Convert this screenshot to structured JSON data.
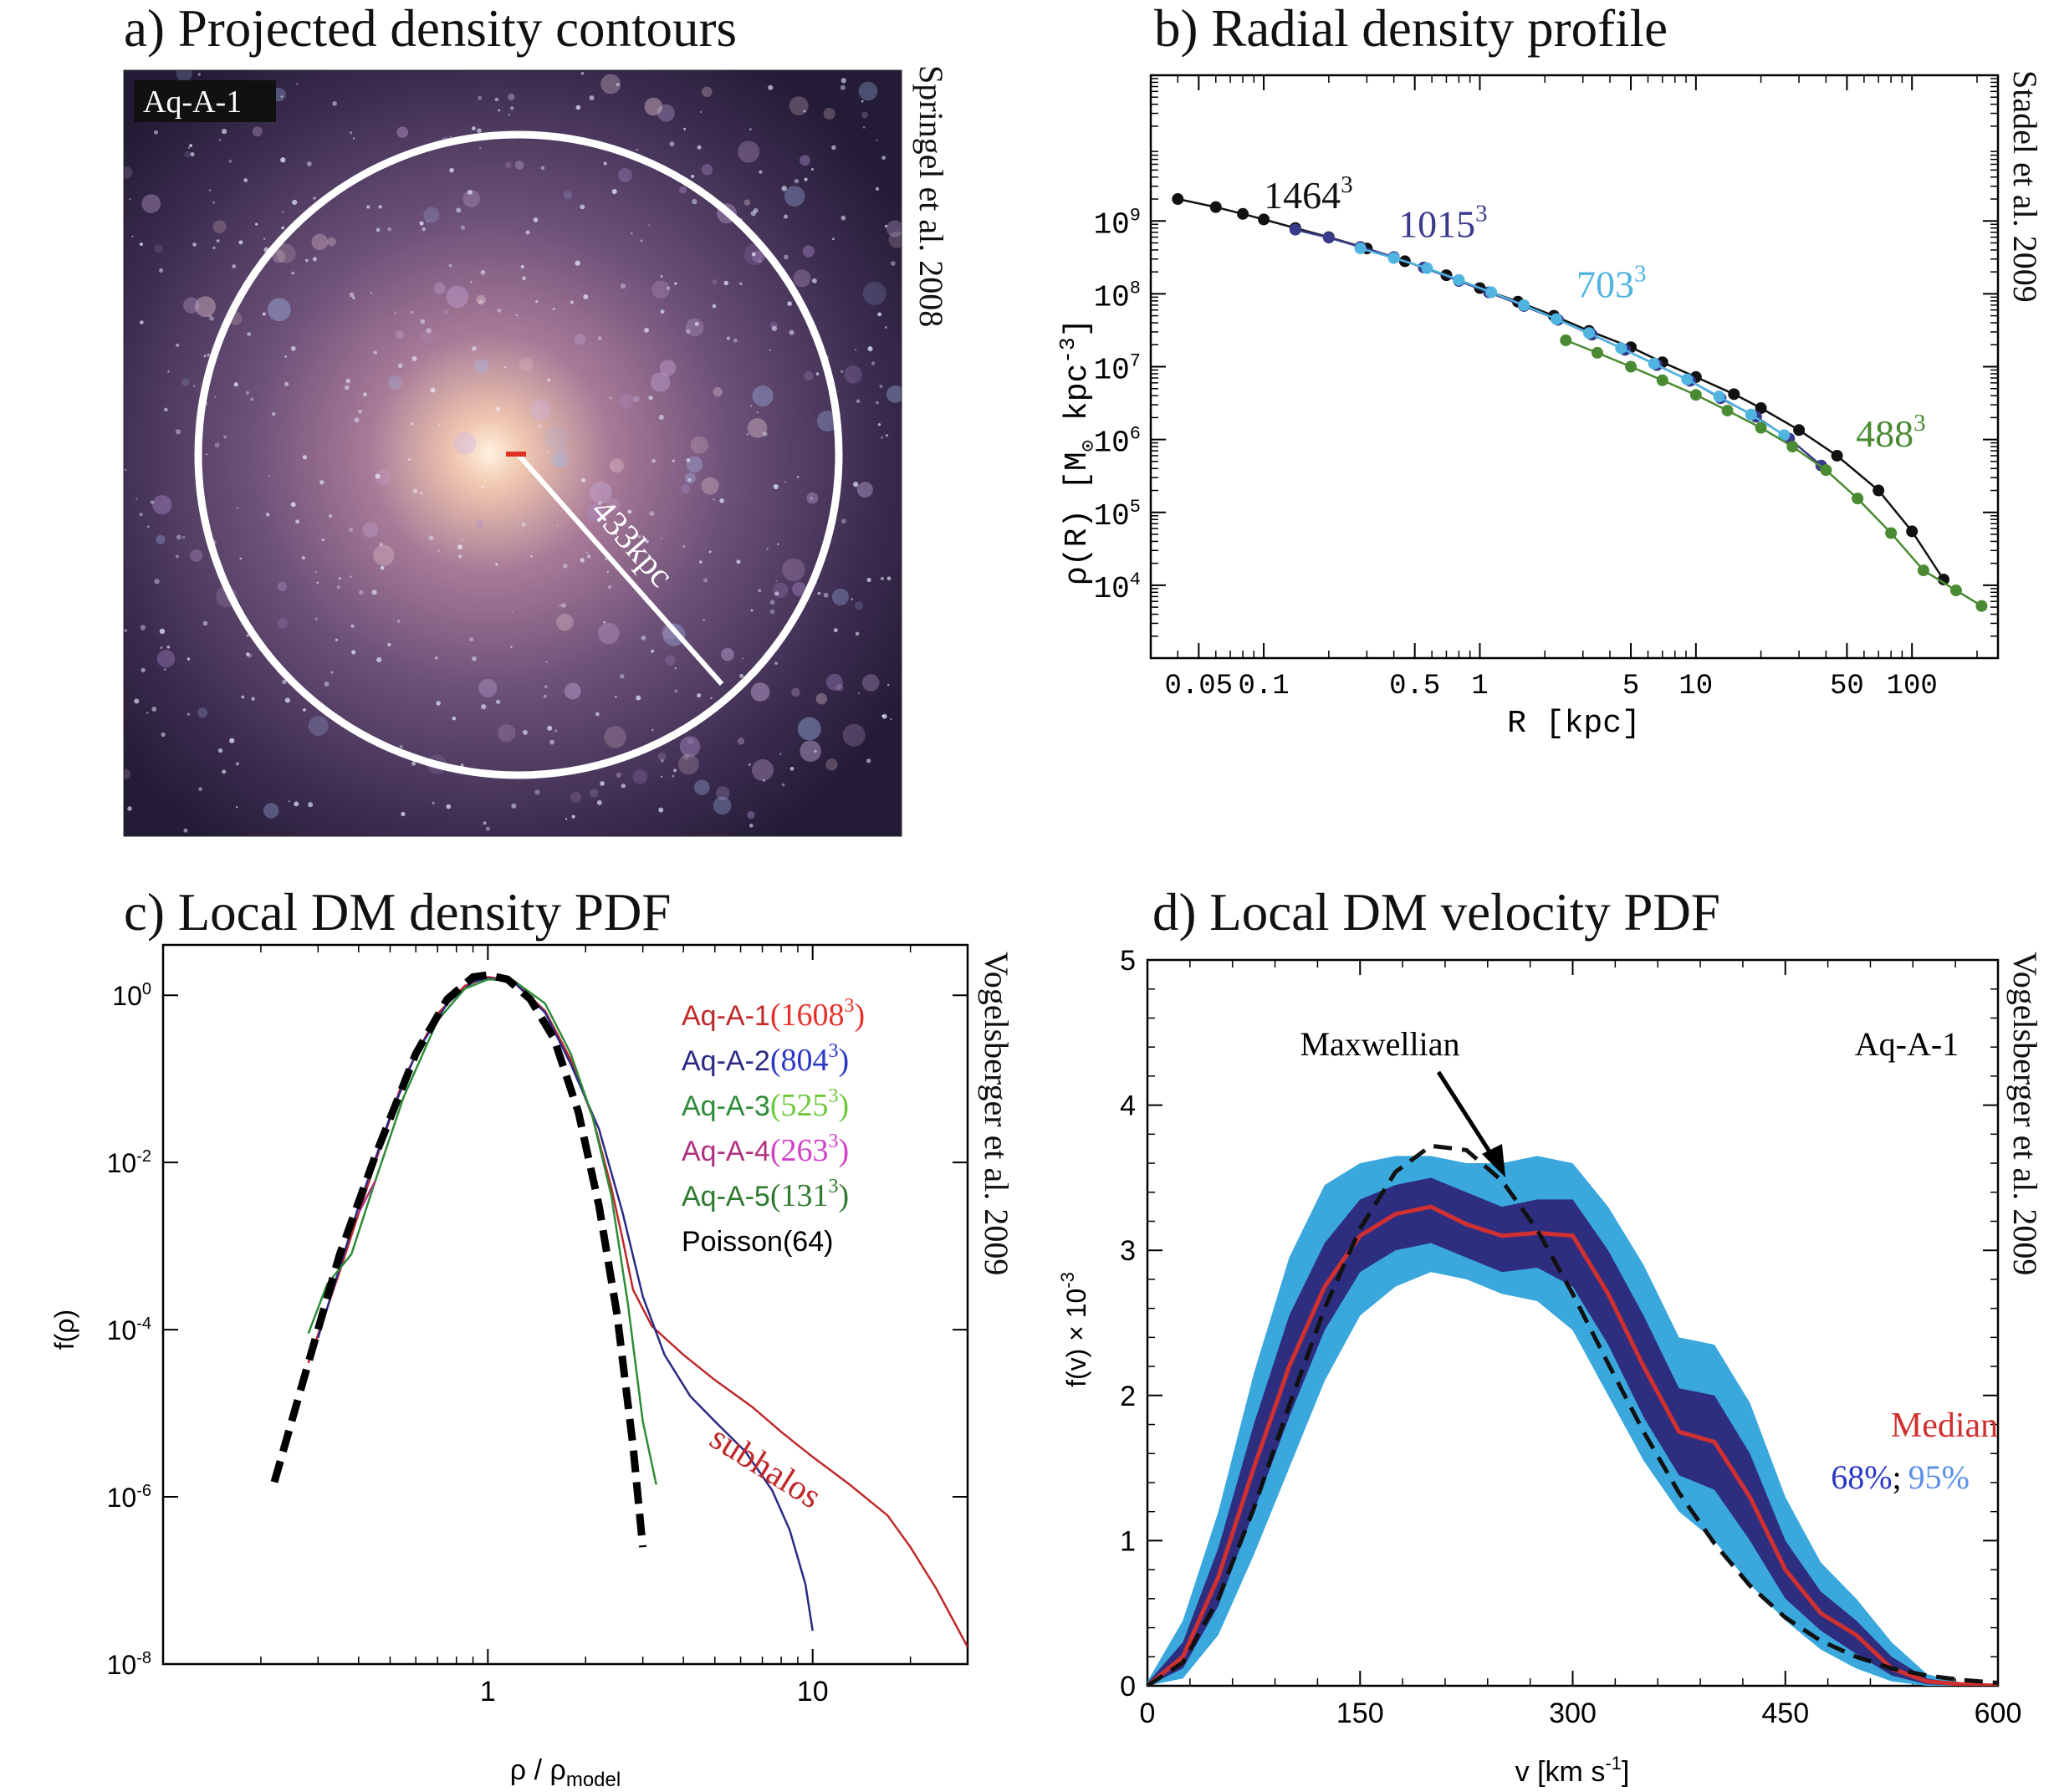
{
  "panels": {
    "a": {
      "title": "a) Projected density contours",
      "label": "Aq-A-1",
      "radius_label": "433kpc",
      "citation": "Springel et al. 2008"
    },
    "b": {
      "title": "b) Radial density profile",
      "citation": "Stadel et al. 2009"
    },
    "c": {
      "title": "c) Local DM density PDF",
      "citation": "Vogelsberger et al. 2009"
    },
    "d": {
      "title": "d) Local DM velocity PDF",
      "citation": "Vogelsberger et al. 2009"
    }
  },
  "chart_data": [
    {
      "panel": "a",
      "type": "other",
      "colors": {
        "circle": "#ffffff",
        "center_marker": "#e03020",
        "background": "#4a3a5a"
      }
    },
    {
      "panel": "b",
      "type": "line",
      "xlabel": "R [kpc]",
      "ylabel_main": "ρ(R) [M",
      "ylabel_sun": "⊙",
      "ylabel_unit": " kpc",
      "ylabel_exp": "-3",
      "ylabel_close": "]",
      "xscale": "log",
      "yscale": "log",
      "xlim": [
        0.03,
        250
      ],
      "ylim": [
        1000,
        100000000000
      ],
      "xticks": [
        0.05,
        0.1,
        0.5,
        1,
        5,
        10,
        50,
        100
      ],
      "xtick_labels": [
        "0.05",
        "0.1",
        "0.5",
        "1",
        "5",
        "10",
        "50",
        "100"
      ],
      "yticks": [
        10000,
        100000,
        1000000,
        10000000,
        100000000,
        1000000000
      ],
      "ytick_base": [
        "10",
        "10",
        "10",
        "10",
        "10",
        "10"
      ],
      "ytick_exp": [
        "4",
        "5",
        "6",
        "7",
        "8",
        "9"
      ],
      "series": [
        {
          "name": "1464",
          "exp": "3",
          "color": "#111111",
          "x": [
            0.04,
            0.06,
            0.08,
            0.1,
            0.14,
            0.2,
            0.3,
            0.45,
            0.7,
            1,
            1.5,
            2.2,
            3.2,
            5,
            7,
            10,
            15,
            20,
            30,
            45,
            70,
            100,
            140
          ],
          "y": [
            2000000000,
            1550000000,
            1250000000,
            1050000000,
            800000000,
            600000000,
            420000000,
            280000000,
            180000000,
            120000000,
            78000000,
            50000000,
            31000000,
            18500000,
            11500000,
            7200000,
            4200000,
            2700000,
            1350000,
            600000,
            200000,
            55000,
            12000
          ]
        },
        {
          "name": "1015",
          "exp": "3",
          "color": "#3a3a8c",
          "x": [
            0.14,
            0.2,
            0.28,
            0.4,
            0.55,
            0.8,
            1.1,
            1.6,
            2.3,
            3.3,
            4.7,
            6.6,
            9.4,
            13,
            19,
            27,
            38
          ],
          "y": [
            760000000,
            590000000,
            440000000,
            320000000,
            230000000,
            150000000,
            105000000,
            68000000,
            44000000,
            27500000,
            17000000,
            10500000,
            6400000,
            3700000,
            2050000,
            1030000,
            440000
          ]
        },
        {
          "name": "703",
          "exp": "3",
          "color": "#4fb4e0",
          "x": [
            0.28,
            0.4,
            0.57,
            0.8,
            1.13,
            1.6,
            2.26,
            3.2,
            4.5,
            6.4,
            9.1,
            12.8,
            18,
            25.6
          ],
          "y": [
            420000000,
            310000000,
            225000000,
            155000000,
            105000000,
            70000000,
            45000000,
            29000000,
            18000000,
            11000000,
            6700000,
            3900000,
            2200000,
            1150000
          ]
        },
        {
          "name": "488",
          "exp": "3",
          "color": "#4a8a32",
          "x": [
            2.5,
            3.5,
            5,
            7,
            10,
            14,
            20,
            28,
            40,
            56,
            80,
            113,
            160,
            210
          ],
          "y": [
            23000000,
            15500000,
            10000000,
            6500000,
            4100000,
            2500000,
            1450000,
            800000,
            380000,
            155000,
            52000,
            16000,
            8500,
            5200
          ]
        }
      ],
      "series_labels": [
        {
          "series": 0,
          "at_x": 0.1,
          "at_y": 1500000000
        },
        {
          "series": 1,
          "at_x": 0.42,
          "at_y": 600000000
        },
        {
          "series": 2,
          "at_x": 2.8,
          "at_y": 90000000
        },
        {
          "series": 3,
          "at_x": 55,
          "at_y": 800000
        }
      ]
    },
    {
      "panel": "c",
      "type": "line",
      "xlabel": "ρ / ρ",
      "xlabel_sub": "model",
      "ylabel": "f(ρ)",
      "xscale": "log",
      "yscale": "log",
      "xlim": [
        0.1,
        30
      ],
      "ylim": [
        1e-08,
        4
      ],
      "xticks": [
        1,
        10
      ],
      "xtick_labels": [
        "1",
        "10"
      ],
      "yticks": [
        1e-08,
        1e-06,
        0.0001,
        0.01,
        1
      ],
      "ytick_base": [
        "10",
        "10",
        "10",
        "10",
        "10"
      ],
      "ytick_exp": [
        "-8",
        "-6",
        "-4",
        "-2",
        "0"
      ],
      "series": [
        {
          "name": "Aq-A-1",
          "res": "(1608",
          "exp": "3",
          "close": ")",
          "color": "#c0282a",
          "label_color": "#e8302a",
          "x": [
            0.28,
            0.35,
            0.45,
            0.55,
            0.7,
            0.85,
            1,
            1.2,
            1.5,
            1.8,
            2.1,
            2.4,
            2.6,
            2.8,
            3.2,
            4,
            5,
            6.5,
            8,
            10,
            13,
            17,
            20,
            24,
            30
          ],
          "y": [
            4e-05,
            0.0005,
            0.01,
            0.1,
            0.6,
            1.3,
            1.65,
            1.5,
            0.65,
            0.17,
            0.035,
            0.005,
            0.0012,
            0.0003,
            0.00011,
            5e-05,
            2.5e-05,
            1.2e-05,
            6e-06,
            3e-06,
            1.4e-06,
            6e-07,
            2.5e-07,
            8e-08,
            1.6e-08
          ]
        },
        {
          "name": "Aq-A-2",
          "res": "(804",
          "exp": "3",
          "close": ")",
          "color": "#2a2a82",
          "label_color": "#2a36c8",
          "x": [
            0.3,
            0.4,
            0.5,
            0.6,
            0.75,
            0.9,
            1,
            1.2,
            1.5,
            1.8,
            2.2,
            2.6,
            3,
            3.5,
            4.2,
            5,
            6.2,
            7.5,
            8.5,
            9.5,
            10
          ],
          "y": [
            8e-05,
            0.003,
            0.035,
            0.2,
            0.8,
            1.45,
            1.6,
            1.45,
            0.62,
            0.15,
            0.025,
            0.0025,
            0.00025,
            5e-05,
            1.6e-05,
            8e-06,
            3.5e-06,
            1.2e-06,
            4e-07,
            9e-08,
            2.5e-08
          ]
        },
        {
          "name": "Aq-A-3",
          "res": "(525",
          "exp": "3",
          "close": ")",
          "color": "#2e8b3a",
          "label_color": "#6ec83c",
          "x": [
            0.28,
            0.32,
            0.38,
            0.45,
            0.55,
            0.7,
            0.85,
            1,
            1.2,
            1.5,
            1.8,
            2.1,
            2.4,
            2.7,
            3,
            3.3
          ],
          "y": [
            9e-05,
            0.00035,
            0.0008,
            0.006,
            0.06,
            0.5,
            1.2,
            1.55,
            1.5,
            0.8,
            0.2,
            0.035,
            0.004,
            0.0002,
            8e-06,
            1.4e-06
          ]
        },
        {
          "name": "Aq-A-4",
          "res": "(263",
          "exp": "3",
          "close": ")",
          "color": "#b03080",
          "label_color": "#d040c8",
          "x": [
            0.4,
            0.45
          ],
          "y": [
            0.0025,
            0.006
          ]
        },
        {
          "name": "Aq-A-5",
          "res": "(131",
          "exp": "3",
          "close": ")",
          "color": "#2e7a30",
          "label_color": "#2e7a30",
          "x": [],
          "y": []
        },
        {
          "name": "Poisson(64)",
          "res": "",
          "exp": "",
          "close": "",
          "color": "#000000",
          "label_color": "#000000",
          "dashed": true,
          "x": [
            0.22,
            0.28,
            0.35,
            0.45,
            0.6,
            0.75,
            0.9,
            1,
            1.15,
            1.35,
            1.6,
            1.9,
            2.2,
            2.5,
            2.8,
            3
          ],
          "y": [
            1.5e-06,
            4e-05,
            0.0008,
            0.012,
            0.2,
            0.9,
            1.65,
            1.75,
            1.55,
            0.9,
            0.3,
            0.04,
            0.003,
            0.00015,
            4e-06,
            2.5e-07
          ]
        }
      ],
      "annotation": {
        "text": "subhalos",
        "color": "#c0282a"
      }
    },
    {
      "panel": "d",
      "type": "area",
      "xlabel": "v [km s",
      "xlabel_exp": "-1",
      "xlabel_close": "]",
      "ylabel": "f(v) × 10",
      "ylabel_exp": "-3",
      "xlim": [
        0,
        600
      ],
      "ylim": [
        0,
        5
      ],
      "xticks": [
        0,
        150,
        300,
        450,
        600
      ],
      "xtick_labels": [
        "0",
        "150",
        "300",
        "450",
        "600"
      ],
      "yticks": [
        0,
        1,
        2,
        3,
        4,
        5
      ],
      "ytick_labels": [
        "0",
        "1",
        "2",
        "3",
        "4",
        "5"
      ],
      "v": [
        0,
        25,
        50,
        75,
        100,
        125,
        150,
        175,
        200,
        225,
        250,
        275,
        300,
        325,
        350,
        375,
        400,
        425,
        450,
        475,
        500,
        525,
        550,
        575,
        600
      ],
      "series": [
        {
          "name": "Median",
          "color": "#d03030",
          "y": [
            0,
            0.2,
            0.75,
            1.5,
            2.2,
            2.75,
            3.1,
            3.25,
            3.3,
            3.18,
            3.1,
            3.12,
            3.1,
            2.7,
            2.2,
            1.75,
            1.68,
            1.3,
            0.8,
            0.5,
            0.35,
            0.12,
            0.03,
            0.01,
            0
          ]
        },
        {
          "name": "68%",
          "color": "#2e2e80",
          "low": [
            0,
            0.12,
            0.55,
            1.2,
            1.85,
            2.45,
            2.85,
            3,
            3.05,
            2.95,
            2.85,
            2.88,
            2.75,
            2.35,
            1.85,
            1.45,
            1.35,
            1.0,
            0.6,
            0.38,
            0.22,
            0.07,
            0.01,
            0,
            0
          ],
          "high": [
            0.02,
            0.3,
            0.95,
            1.8,
            2.55,
            3.05,
            3.35,
            3.45,
            3.5,
            3.4,
            3.3,
            3.35,
            3.35,
            3.0,
            2.55,
            2.05,
            2.0,
            1.6,
            1.0,
            0.65,
            0.45,
            0.2,
            0.05,
            0.01,
            0
          ]
        },
        {
          "name": "95%",
          "color": "#3aa8dc",
          "low": [
            0,
            0.05,
            0.35,
            0.9,
            1.5,
            2.1,
            2.55,
            2.75,
            2.85,
            2.8,
            2.7,
            2.65,
            2.45,
            2.0,
            1.55,
            1.2,
            1.0,
            0.7,
            0.45,
            0.25,
            0.12,
            0.03,
            0,
            0,
            0
          ],
          "high": [
            0.03,
            0.45,
            1.2,
            2.15,
            2.95,
            3.45,
            3.6,
            3.65,
            3.65,
            3.6,
            3.6,
            3.65,
            3.6,
            3.3,
            2.9,
            2.4,
            2.35,
            1.95,
            1.3,
            0.85,
            0.6,
            0.3,
            0.08,
            0.02,
            0
          ]
        },
        {
          "name": "Maxwellian",
          "color": "#111111",
          "dashed": true,
          "y": [
            0,
            0.16,
            0.6,
            1.22,
            1.93,
            2.6,
            3.15,
            3.54,
            3.72,
            3.69,
            3.48,
            3.14,
            2.7,
            2.22,
            1.75,
            1.33,
            0.98,
            0.69,
            0.47,
            0.31,
            0.2,
            0.12,
            0.07,
            0.04,
            0.02
          ]
        }
      ],
      "legend": {
        "median": "Median",
        "pct68": "68%",
        "sep": ";",
        "pct95": "95%",
        "pct95_color": "#5b8fe8",
        "pct68_color": "#2a36c8"
      },
      "inset_label": "Aq-A-1",
      "annotation": {
        "text": "Maxwellian"
      }
    }
  ]
}
